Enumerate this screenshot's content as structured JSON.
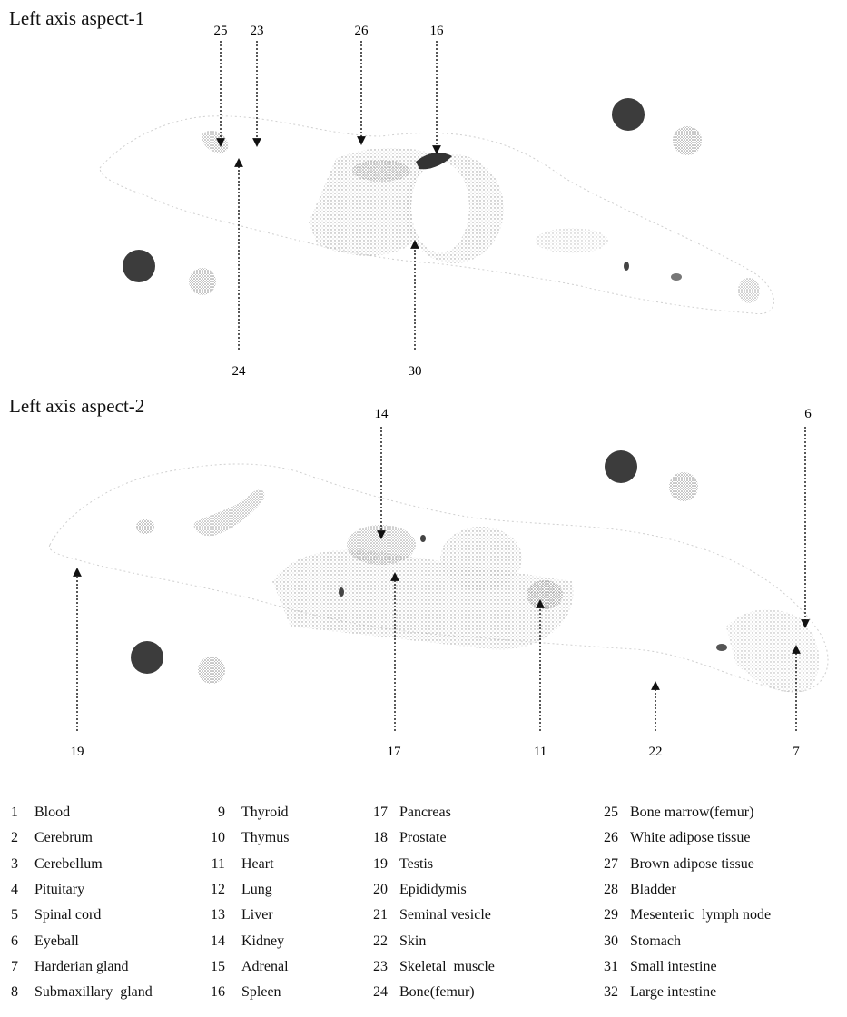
{
  "panels": [
    {
      "title": "Left axis aspect-1",
      "callouts_top": [
        "25",
        "23",
        "26",
        "16"
      ],
      "callouts_bottom": [
        "24",
        "30"
      ]
    },
    {
      "title": "Left axis aspect-2",
      "callouts_top": [
        "14",
        "6"
      ],
      "callouts_bottom": [
        "19",
        "17",
        "11",
        "22",
        "7"
      ]
    }
  ],
  "legend": [
    {
      "num": "1",
      "name": "Blood"
    },
    {
      "num": "2",
      "name": "Cerebrum"
    },
    {
      "num": "3",
      "name": "Cerebellum"
    },
    {
      "num": "4",
      "name": "Pituitary"
    },
    {
      "num": "5",
      "name": "Spinal cord"
    },
    {
      "num": "6",
      "name": "Eyeball"
    },
    {
      "num": "7",
      "name": "Harderian gland"
    },
    {
      "num": "8",
      "name": "Submaxillary  gland"
    },
    {
      "num": "9",
      "name": "Thyroid"
    },
    {
      "num": "10",
      "name": "Thymus"
    },
    {
      "num": "11",
      "name": "Heart"
    },
    {
      "num": "12",
      "name": "Lung"
    },
    {
      "num": "13",
      "name": "Liver"
    },
    {
      "num": "14",
      "name": "Kidney"
    },
    {
      "num": "15",
      "name": "Adrenal"
    },
    {
      "num": "16",
      "name": "Spleen"
    },
    {
      "num": "17",
      "name": "Pancreas"
    },
    {
      "num": "18",
      "name": "Prostate"
    },
    {
      "num": "19",
      "name": "Testis"
    },
    {
      "num": "20",
      "name": "Epididymis"
    },
    {
      "num": "21",
      "name": "Seminal vesicle"
    },
    {
      "num": "22",
      "name": "Skin"
    },
    {
      "num": "23",
      "name": "Skeletal  muscle"
    },
    {
      "num": "24",
      "name": "Bone(femur)"
    },
    {
      "num": "25",
      "name": "Bone marrow(femur)"
    },
    {
      "num": "26",
      "name": "White adipose tissue"
    },
    {
      "num": "27",
      "name": "Brown adipose tissue"
    },
    {
      "num": "28",
      "name": "Bladder"
    },
    {
      "num": "29",
      "name": "Mesenteric  lymph node"
    },
    {
      "num": "30",
      "name": "Stomach"
    },
    {
      "num": "31",
      "name": "Small intestine"
    },
    {
      "num": "32",
      "name": "Large intestine"
    }
  ],
  "colors": {
    "dark_marker": "#3c3c3c",
    "light_marker": "#d6d6d6",
    "stipple": "#b8b8b8"
  }
}
